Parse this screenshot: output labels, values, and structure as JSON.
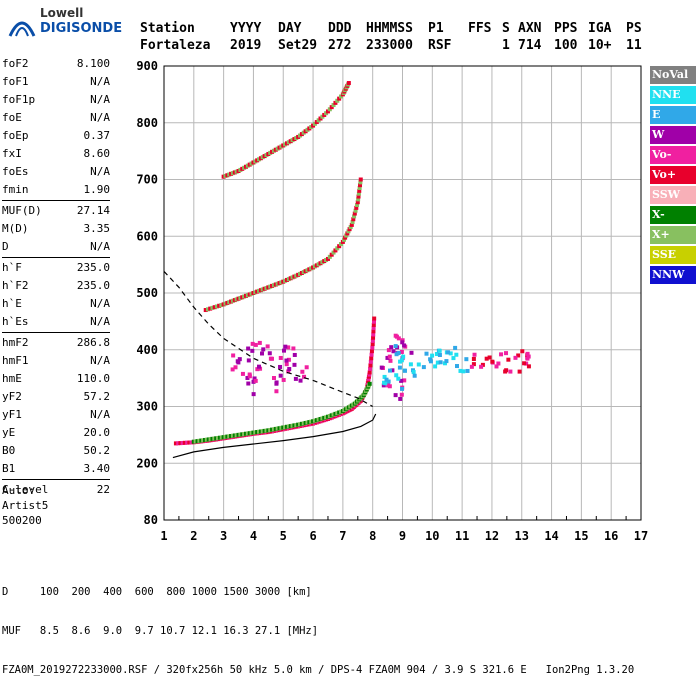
{
  "logo": {
    "line1": "Lowell",
    "line2": "DIGISONDE"
  },
  "header": {
    "labels": [
      "Station",
      "YYYY",
      "DAY",
      "DDD",
      "HHMMSS",
      "P1",
      "FFS",
      "S",
      "AXN",
      "PPS",
      "IGA",
      "PS"
    ],
    "values": [
      "Fortaleza",
      "2019",
      "Set29",
      "272",
      "233000",
      "RSF",
      "",
      "1",
      "714",
      "100",
      "10+",
      "11"
    ]
  },
  "params": [
    [
      [
        "foF2",
        "8.100"
      ],
      [
        "foF1",
        "N/A"
      ],
      [
        "foF1p",
        "N/A"
      ],
      [
        "foE",
        "N/A"
      ],
      [
        "foEp",
        "0.37"
      ],
      [
        "fxI",
        "8.60"
      ],
      [
        "foEs",
        "N/A"
      ],
      [
        "fmin",
        "1.90"
      ]
    ],
    [
      [
        "MUF(D)",
        "27.14"
      ],
      [
        "M(D)",
        "3.35"
      ],
      [
        "D",
        "N/A"
      ]
    ],
    [
      [
        "h`F",
        "235.0"
      ],
      [
        "h`F2",
        "235.0"
      ],
      [
        "h`E",
        "N/A"
      ],
      [
        "h`Es",
        "N/A"
      ]
    ],
    [
      [
        "hmF2",
        "286.8"
      ],
      [
        "hmF1",
        "N/A"
      ],
      [
        "hmE",
        "110.0"
      ],
      [
        "yF2",
        "57.2"
      ],
      [
        "yF1",
        "N/A"
      ],
      [
        "yE",
        "20.0"
      ],
      [
        "B0",
        "50.2"
      ],
      [
        "B1",
        "3.40"
      ]
    ],
    [
      [
        "C-level",
        "22"
      ]
    ]
  ],
  "auto": {
    "line1": "Auto:",
    "line2": "Artist5",
    "line3": "500200"
  },
  "legend": [
    {
      "label": "NoVal",
      "color": "#808080"
    },
    {
      "label": "NNE",
      "color": "#20e0f0"
    },
    {
      "label": "E",
      "color": "#30a8e8"
    },
    {
      "label": "W",
      "color": "#a000a8"
    },
    {
      "label": "Vo-",
      "color": "#f020a0"
    },
    {
      "label": "Vo+",
      "color": "#e8002c"
    },
    {
      "label": "SSW",
      "color": "#f8b0b8"
    },
    {
      "label": "X-",
      "color": "#008000"
    },
    {
      "label": "X+",
      "color": "#88c060"
    },
    {
      "label": "SSE",
      "color": "#c8d000"
    },
    {
      "label": "NNW",
      "color": "#1010d0"
    }
  ],
  "footer": {
    "line1": "D     100  200  400  600  800 1000 1500 3000 [km]",
    "line2": "MUF   8.5  8.6  9.0  9.7 10.7 12.1 16.3 27.1 [MHz]",
    "line3": "FZA0M_2019272233000.RSF / 320fx256h 50 kHz 5.0 km / DPS-4 FZA0M 904 / 3.9 S 321.6 E   Ion2Png 1.3.20"
  },
  "chart_data": {
    "type": "scatter",
    "xlim": [
      1,
      17
    ],
    "ylim": [
      80,
      900
    ],
    "xticks": [
      "1",
      "2",
      "3",
      "4",
      "5",
      "6",
      "7",
      "8",
      "9",
      "10",
      "11",
      "12",
      "13",
      "14",
      "15",
      "16",
      "17"
    ],
    "yticks": [
      "80",
      "200",
      "300",
      "400",
      "500",
      "600",
      "700",
      "800",
      "900"
    ],
    "grid": true,
    "traces": [
      {
        "name": "O-trace 1st hop",
        "points": [
          [
            1.4,
            235
          ],
          [
            2.0,
            237
          ],
          [
            2.5,
            240
          ],
          [
            3.0,
            244
          ],
          [
            3.5,
            248
          ],
          [
            4.0,
            252
          ],
          [
            4.5,
            255
          ],
          [
            5.0,
            260
          ],
          [
            5.5,
            265
          ],
          [
            6.0,
            270
          ],
          [
            6.5,
            278
          ],
          [
            7.0,
            288
          ],
          [
            7.3,
            296
          ],
          [
            7.6,
            310
          ],
          [
            7.8,
            330
          ],
          [
            7.9,
            360
          ],
          [
            8.0,
            410
          ],
          [
            8.05,
            455
          ]
        ]
      },
      {
        "name": "X-trace 1st hop",
        "points": [
          [
            2.0,
            238
          ],
          [
            2.5,
            242
          ],
          [
            3.0,
            246
          ],
          [
            3.5,
            250
          ],
          [
            4.0,
            254
          ],
          [
            4.5,
            258
          ],
          [
            5.0,
            263
          ],
          [
            5.5,
            268
          ],
          [
            6.0,
            274
          ],
          [
            6.5,
            282
          ],
          [
            7.0,
            292
          ],
          [
            7.4,
            305
          ],
          [
            7.7,
            320
          ],
          [
            7.9,
            340
          ]
        ]
      },
      {
        "name": "2nd hop",
        "points": [
          [
            2.4,
            470
          ],
          [
            3.0,
            480
          ],
          [
            3.5,
            490
          ],
          [
            4.0,
            500
          ],
          [
            4.5,
            510
          ],
          [
            5.0,
            520
          ],
          [
            5.5,
            532
          ],
          [
            6.0,
            545
          ],
          [
            6.5,
            560
          ],
          [
            7.0,
            590
          ],
          [
            7.3,
            620
          ],
          [
            7.5,
            660
          ],
          [
            7.6,
            700
          ]
        ]
      },
      {
        "name": "3rd hop",
        "points": [
          [
            3.0,
            705
          ],
          [
            3.5,
            715
          ],
          [
            4.0,
            730
          ],
          [
            4.5,
            745
          ],
          [
            5.0,
            760
          ],
          [
            5.5,
            775
          ],
          [
            6.0,
            795
          ],
          [
            6.5,
            820
          ],
          [
            7.0,
            850
          ],
          [
            7.2,
            870
          ]
        ]
      },
      {
        "name": "W echoes",
        "points": [
          [
            3.5,
            380
          ],
          [
            3.8,
            340
          ],
          [
            4.0,
            400
          ],
          [
            4.2,
            360
          ],
          [
            4.5,
            390
          ],
          [
            4.8,
            340
          ],
          [
            5.0,
            380
          ],
          [
            5.3,
            400
          ],
          [
            5.6,
            360
          ],
          [
            8.5,
            350
          ],
          [
            8.7,
            380
          ],
          [
            9.0,
            330
          ],
          [
            9.2,
            400
          ],
          [
            8.8,
            420
          ]
        ]
      },
      {
        "name": "NNE echoes",
        "points": [
          [
            8.4,
            360
          ],
          [
            8.8,
            390
          ],
          [
            9.0,
            350
          ],
          [
            9.5,
            370
          ],
          [
            10.0,
            380
          ],
          [
            10.3,
            380
          ],
          [
            10.6,
            385
          ],
          [
            11.0,
            380
          ]
        ]
      },
      {
        "name": "Vo+ echoes",
        "points": [
          [
            11.5,
            378
          ],
          [
            12.0,
            380
          ],
          [
            12.5,
            378
          ],
          [
            13.0,
            380
          ],
          [
            13.2,
            377
          ]
        ]
      }
    ],
    "profile_solid": [
      [
        1.3,
        210
      ],
      [
        2.0,
        220
      ],
      [
        3.0,
        228
      ],
      [
        4.0,
        234
      ],
      [
        5.0,
        240
      ],
      [
        6.0,
        247
      ],
      [
        7.0,
        256
      ],
      [
        7.6,
        265
      ],
      [
        8.0,
        276
      ],
      [
        8.1,
        286.8
      ]
    ],
    "profile_dashed": [
      [
        1.0,
        538
      ],
      [
        1.5,
        510
      ],
      [
        2.0,
        475
      ],
      [
        2.5,
        445
      ],
      [
        3.0,
        420
      ],
      [
        4.0,
        385
      ],
      [
        5.0,
        362
      ],
      [
        6.0,
        346
      ],
      [
        7.0,
        325
      ],
      [
        7.5,
        315
      ],
      [
        8.0,
        300
      ]
    ]
  }
}
